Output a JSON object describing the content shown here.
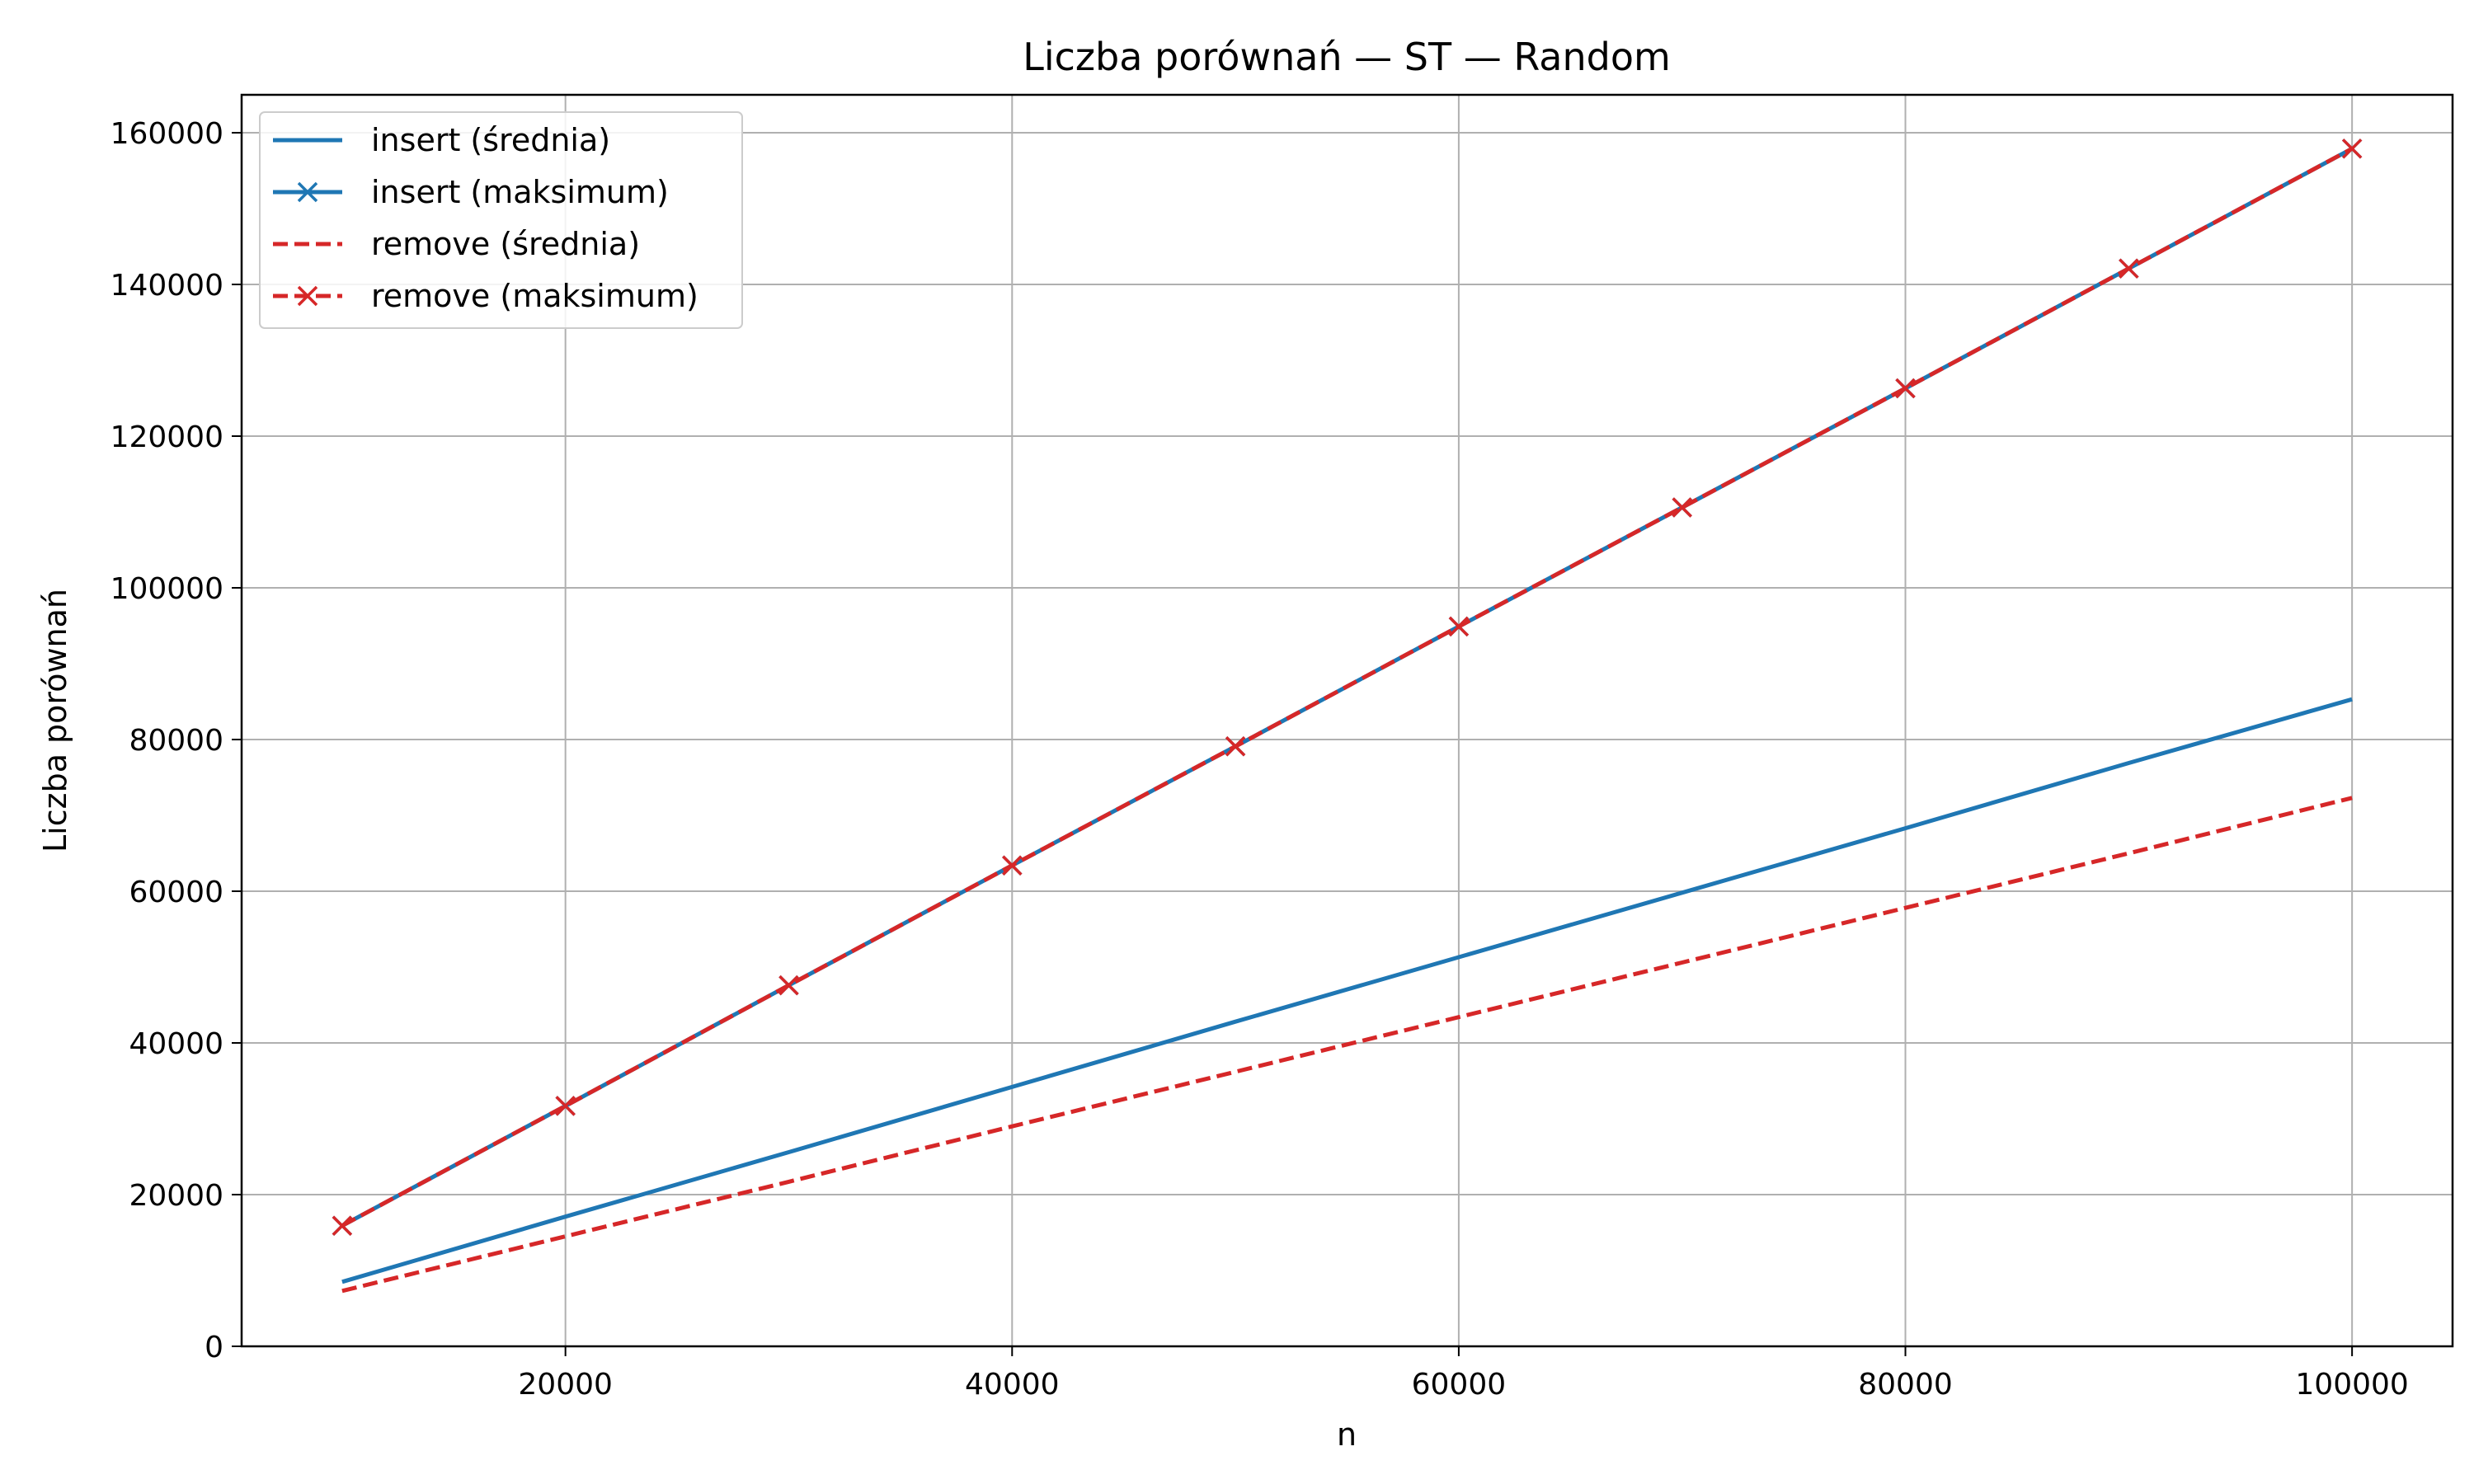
{
  "chart_data": {
    "type": "line",
    "title": "Liczba porównań — ST — Random",
    "xlabel": "n",
    "ylabel": "Liczba porównań",
    "xlim": [
      5500,
      104500
    ],
    "ylim": [
      0,
      165000
    ],
    "xticks": [
      20000,
      40000,
      60000,
      80000,
      100000
    ],
    "yticks": [
      0,
      20000,
      40000,
      60000,
      80000,
      100000,
      120000,
      140000,
      160000
    ],
    "grid": true,
    "legend_position": "top-left",
    "x": [
      10000,
      20000,
      30000,
      40000,
      50000,
      60000,
      70000,
      80000,
      90000,
      100000
    ],
    "series": [
      {
        "name": "insert (średnia)",
        "color": "#1f77b4",
        "linestyle": "solid",
        "marker": "none",
        "values": [
          8500,
          17100,
          25600,
          34200,
          42800,
          51300,
          59800,
          68300,
          76900,
          85300
        ]
      },
      {
        "name": "insert (maksimum)",
        "color": "#1f77b4",
        "linestyle": "solid",
        "marker": "x",
        "values": [
          15900,
          31700,
          47600,
          63400,
          79100,
          94900,
          110600,
          126300,
          142100,
          157900
        ]
      },
      {
        "name": "remove (średnia)",
        "color": "#d62728",
        "linestyle": "dashed",
        "marker": "none",
        "values": [
          7300,
          14500,
          21700,
          29000,
          36200,
          43400,
          50600,
          57800,
          65000,
          72300
        ]
      },
      {
        "name": "remove (maksimum)",
        "color": "#d62728",
        "linestyle": "dashed",
        "marker": "x",
        "values": [
          15900,
          31700,
          47600,
          63400,
          79100,
          94900,
          110600,
          126300,
          142100,
          157900
        ]
      }
    ]
  }
}
